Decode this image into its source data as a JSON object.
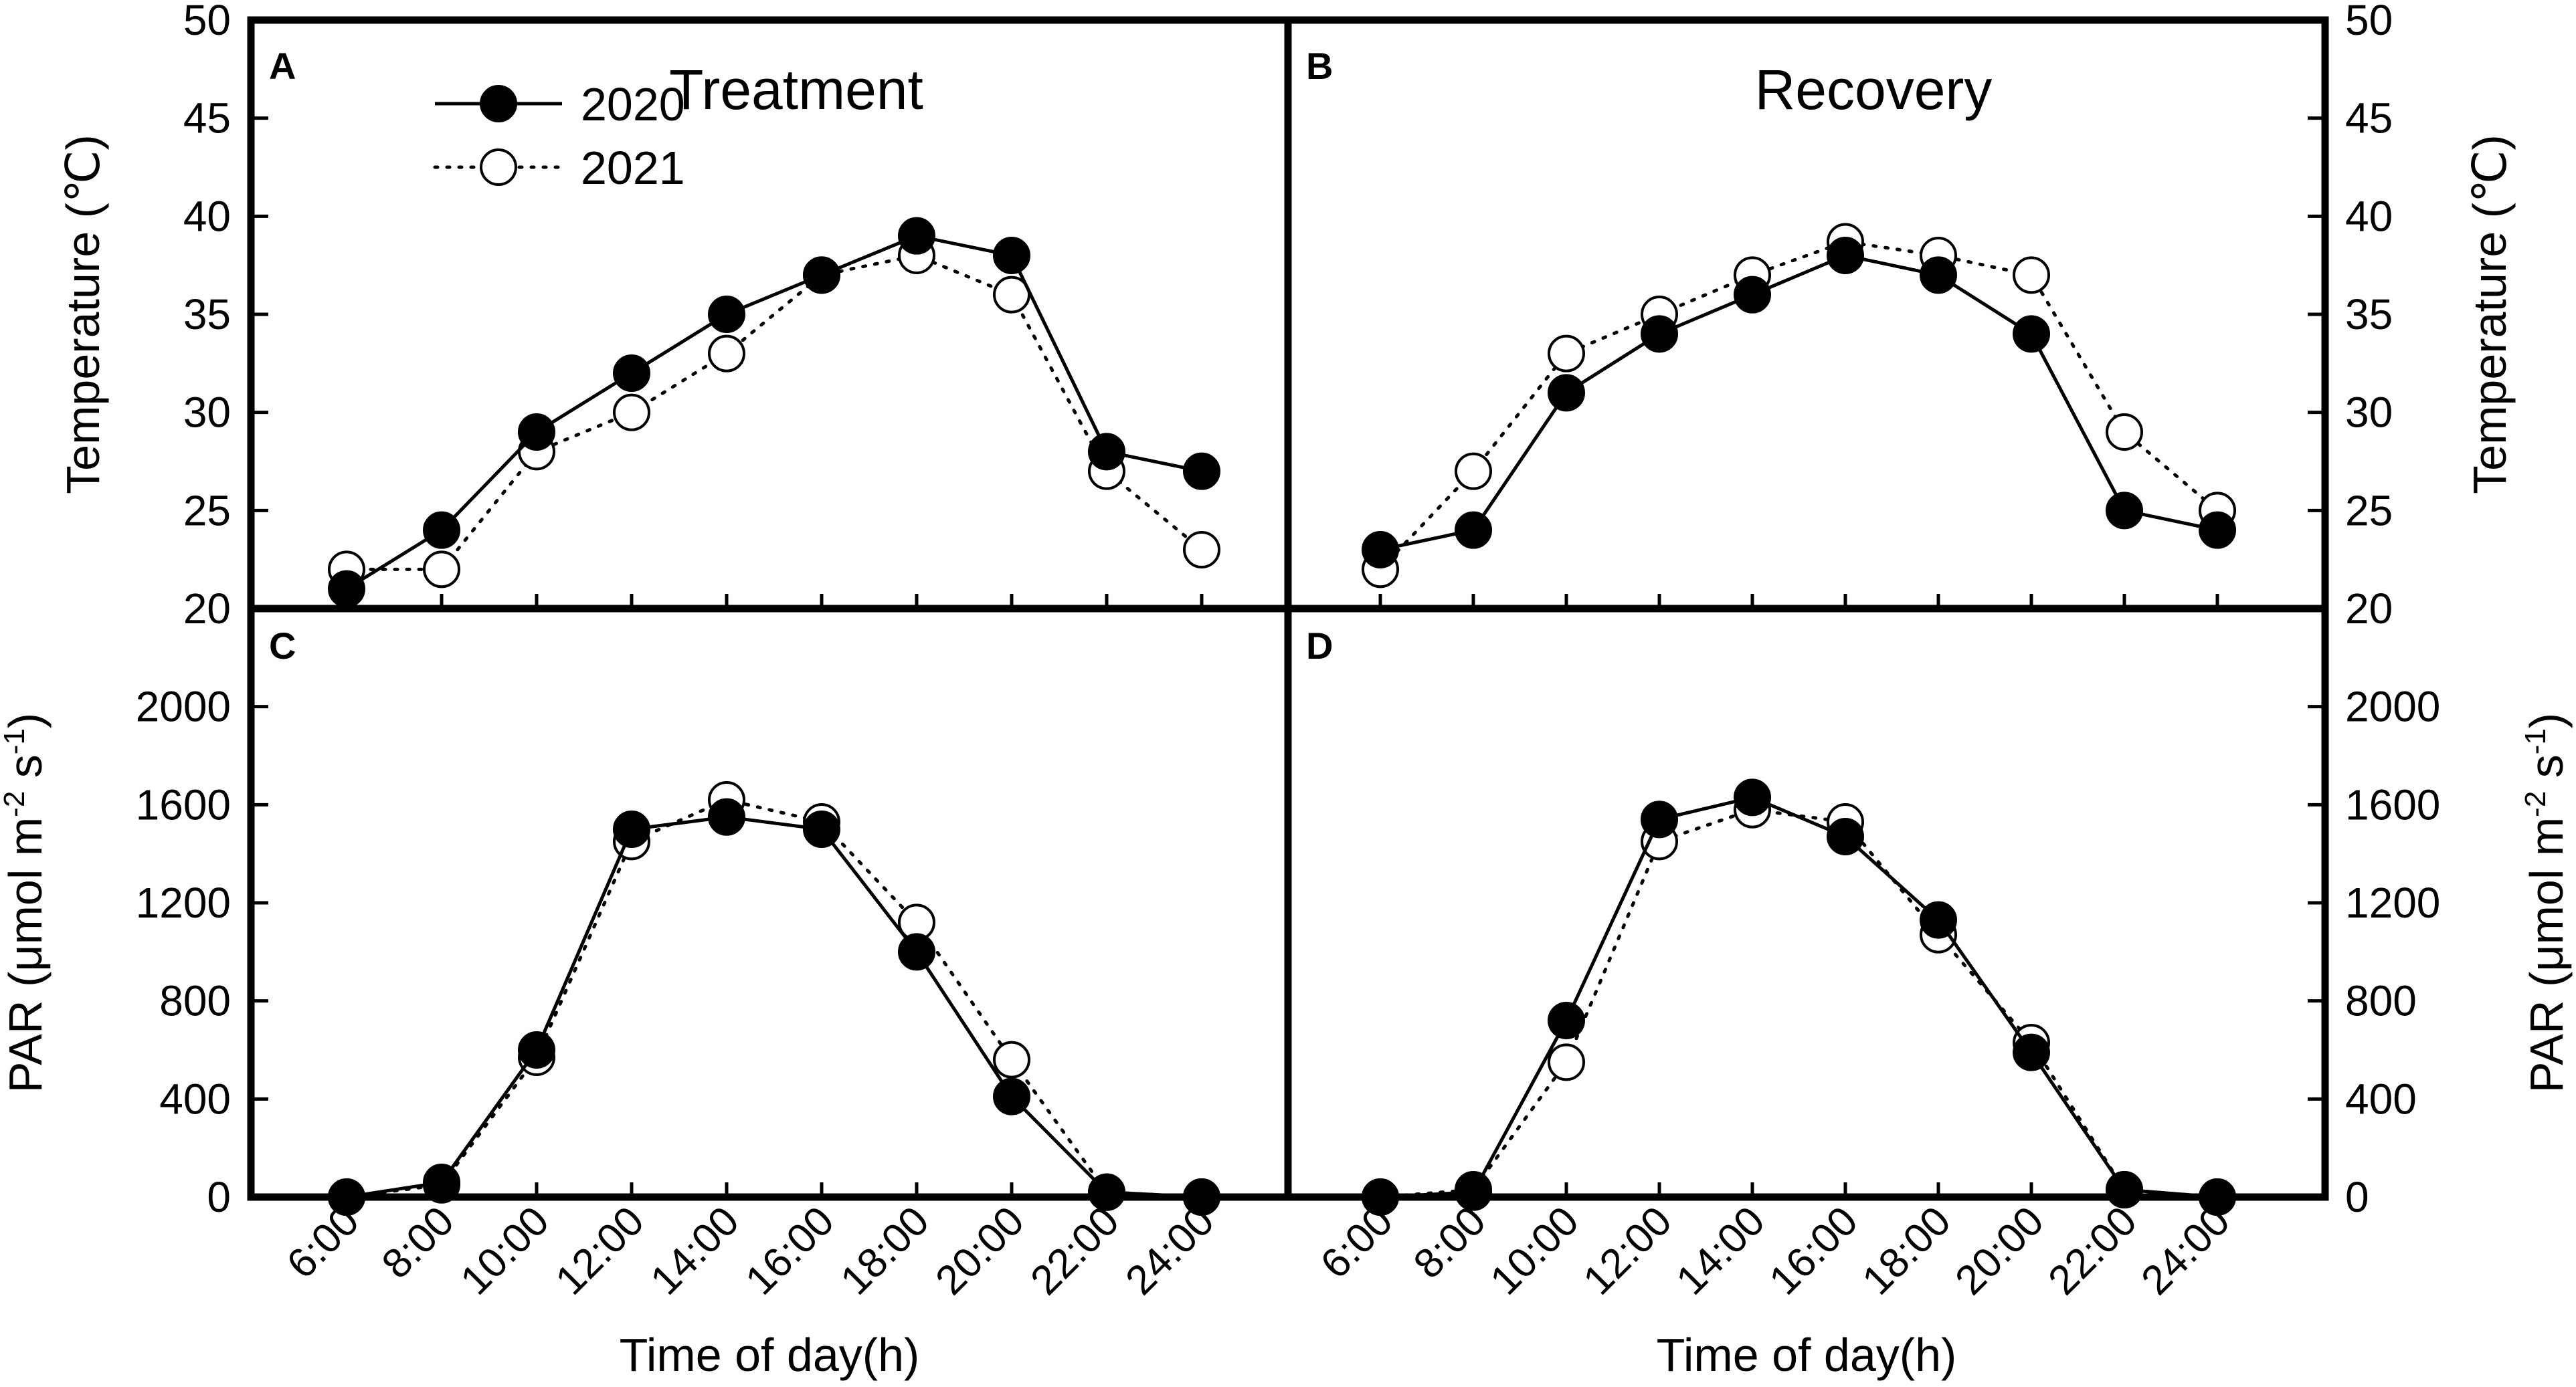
{
  "figure": {
    "xlabel": "Time of day(h)",
    "x_categories": [
      "6:00",
      "8:00",
      "10:00",
      "12:00",
      "14:00",
      "16:00",
      "18:00",
      "20:00",
      "22:00",
      "24:00"
    ],
    "legend": {
      "entries": [
        "2020",
        "2021"
      ],
      "placement": "top-left of panel A"
    },
    "colors": {
      "line": "#000000",
      "filled_marker": "#000000",
      "open_marker": "#ffffff"
    }
  },
  "chart_data": [
    {
      "type": "line",
      "panel": "A",
      "title": "Treatment",
      "categories": [
        "6:00",
        "8:00",
        "10:00",
        "12:00",
        "14:00",
        "16:00",
        "18:00",
        "20:00",
        "22:00",
        "24:00"
      ],
      "ylabel": "Temperature (℃)",
      "ylim": [
        20,
        50
      ],
      "yticks": [
        20,
        25,
        30,
        35,
        40,
        45,
        50
      ],
      "grid": false,
      "series": [
        {
          "name": "2020",
          "style": "solid-filled",
          "values": [
            21,
            24,
            29,
            32,
            35,
            37,
            39,
            38,
            28,
            27
          ]
        },
        {
          "name": "2021",
          "style": "dotted-open",
          "values": [
            22,
            22,
            28,
            30,
            33,
            37,
            38,
            36,
            27,
            23
          ]
        }
      ]
    },
    {
      "type": "line",
      "panel": "B",
      "title": "Recovery",
      "categories": [
        "6:00",
        "8:00",
        "10:00",
        "12:00",
        "14:00",
        "16:00",
        "18:00",
        "20:00",
        "22:00",
        "24:00"
      ],
      "ylabel": "Temperature (℃)",
      "ylim": [
        20,
        50
      ],
      "yticks": [
        20,
        25,
        30,
        35,
        40,
        45,
        50
      ],
      "grid": false,
      "series": [
        {
          "name": "2020",
          "style": "solid-filled",
          "values": [
            23,
            24,
            31,
            34,
            36,
            38,
            37,
            34,
            25,
            24
          ]
        },
        {
          "name": "2021",
          "style": "dotted-open",
          "values": [
            22,
            27,
            33,
            35,
            37,
            38.7,
            38,
            37,
            29,
            25
          ]
        }
      ]
    },
    {
      "type": "line",
      "panel": "C",
      "title": "",
      "categories": [
        "6:00",
        "8:00",
        "10:00",
        "12:00",
        "14:00",
        "16:00",
        "18:00",
        "20:00",
        "22:00",
        "24:00"
      ],
      "ylabel": "PAR (μmol m-2 s-1)",
      "ylim": [
        0,
        2400
      ],
      "yticks": [
        0,
        400,
        800,
        1200,
        1600,
        2000
      ],
      "grid": false,
      "series": [
        {
          "name": "2020",
          "style": "solid-filled",
          "values": [
            0,
            60,
            600,
            1500,
            1550,
            1500,
            1000,
            410,
            20,
            0
          ]
        },
        {
          "name": "2021",
          "style": "dotted-open",
          "values": [
            0,
            50,
            570,
            1450,
            1620,
            1530,
            1120,
            560,
            20,
            0
          ]
        }
      ]
    },
    {
      "type": "line",
      "panel": "D",
      "title": "",
      "categories": [
        "6:00",
        "8:00",
        "10:00",
        "12:00",
        "14:00",
        "16:00",
        "18:00",
        "20:00",
        "22:00",
        "24:00"
      ],
      "ylabel": "PAR (μmol m-2 s-1)",
      "ylim": [
        0,
        2400
      ],
      "yticks": [
        0,
        400,
        800,
        1200,
        1600,
        2000
      ],
      "grid": false,
      "series": [
        {
          "name": "2020",
          "style": "solid-filled",
          "values": [
            0,
            20,
            720,
            1540,
            1630,
            1470,
            1130,
            590,
            30,
            0
          ]
        },
        {
          "name": "2021",
          "style": "dotted-open",
          "values": [
            0,
            30,
            550,
            1450,
            1580,
            1530,
            1070,
            630,
            30,
            0
          ]
        }
      ]
    }
  ]
}
